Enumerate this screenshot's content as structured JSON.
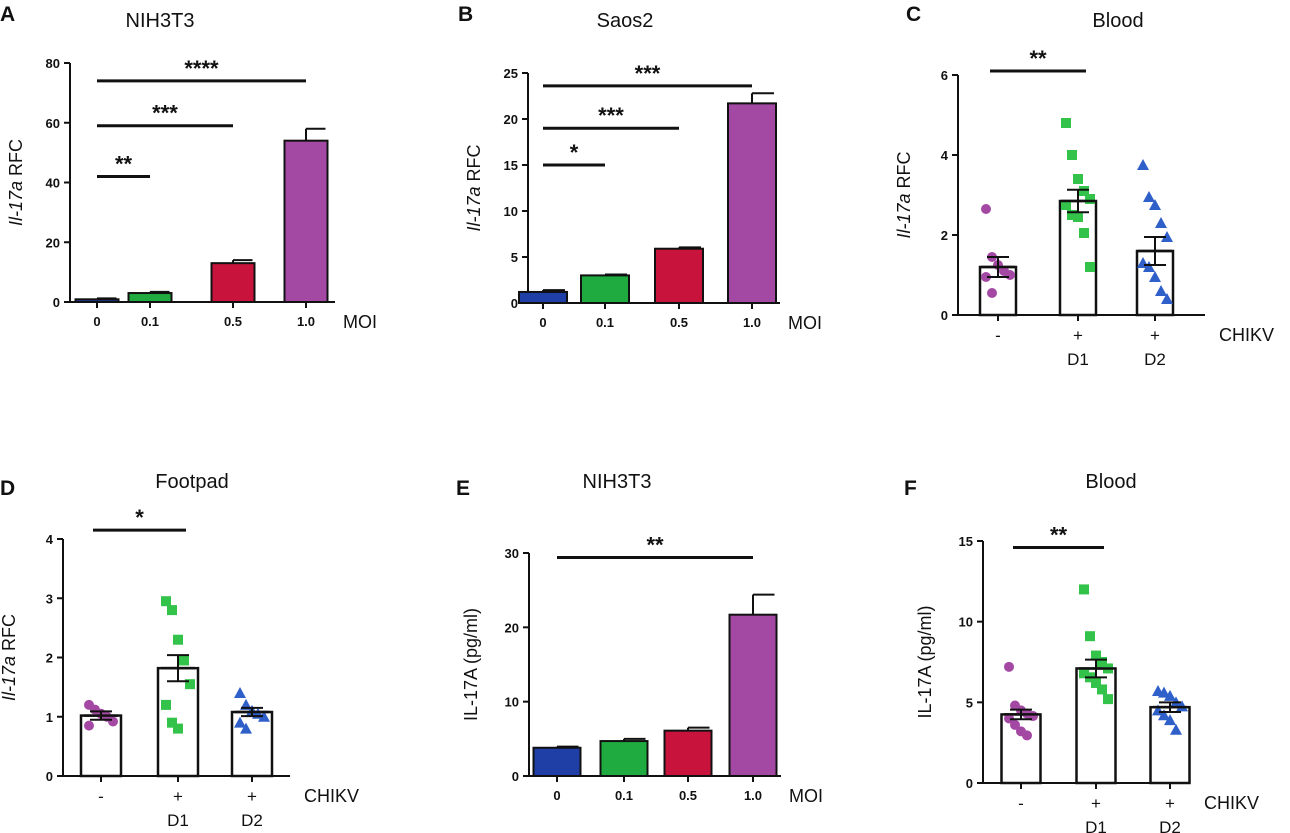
{
  "chart_data": [
    {
      "panel": "A",
      "type": "bar",
      "title": "NIH3T3",
      "ylabel_italic": "Il-17a",
      "ylabel_rest": " RFC",
      "categories": [
        "0",
        "0.1",
        "0.5",
        "1.0"
      ],
      "values": [
        0.9,
        3.0,
        13.0,
        54.0
      ],
      "errors": [
        0.3,
        0.4,
        1.0,
        4.0
      ],
      "colors": [
        "#1f3fa6",
        "#1fab3f",
        "#c8143c",
        "#a349a4"
      ],
      "ylim": [
        0,
        80
      ],
      "yticks": [
        "0",
        "20",
        "40",
        "60",
        "80"
      ],
      "xunit": "MOI",
      "significance": [
        {
          "from": 0,
          "to": 1,
          "level": 42,
          "label": "**"
        },
        {
          "from": 0,
          "to": 2,
          "level": 59,
          "label": "***"
        },
        {
          "from": 0,
          "to": 3,
          "level": 74,
          "label": "****"
        }
      ]
    },
    {
      "panel": "B",
      "type": "bar",
      "title": "Saos2",
      "ylabel_italic": "Il-17a",
      "ylabel_rest": " RFC",
      "categories": [
        "0",
        "0.1",
        "0.5",
        "1.0"
      ],
      "values": [
        1.2,
        3.0,
        5.9,
        21.7
      ],
      "errors": [
        0.2,
        0.1,
        0.15,
        1.1
      ],
      "colors": [
        "#1f3fa6",
        "#1fab3f",
        "#c8143c",
        "#a349a4"
      ],
      "ylim": [
        0,
        25
      ],
      "yticks": [
        "0",
        "5",
        "10",
        "15",
        "20",
        "25"
      ],
      "xunit": "MOI",
      "significance": [
        {
          "from": 0,
          "to": 1,
          "level": 15,
          "label": "*"
        },
        {
          "from": 0,
          "to": 2,
          "level": 19,
          "label": "***"
        },
        {
          "from": 0,
          "to": 3,
          "level": 23.6,
          "label": "***"
        }
      ]
    },
    {
      "panel": "C",
      "type": "dotbar",
      "title": "Blood",
      "ylabel_italic": "Il-17a",
      "ylabel_rest": " RFC",
      "categories": [
        "-",
        "+",
        "+"
      ],
      "sublabels": [
        "",
        "D1",
        "D2"
      ],
      "xunit": "CHIKV",
      "means": [
        1.2,
        2.85,
        1.6
      ],
      "sems": [
        0.25,
        0.28,
        0.35
      ],
      "points": [
        [
          2.65,
          1.45,
          1.25,
          1.1,
          1.0,
          0.95,
          0.55
        ],
        [
          4.8,
          4.0,
          3.4,
          3.1,
          2.9,
          2.75,
          2.5,
          2.45,
          2.05,
          1.2
        ],
        [
          3.75,
          2.95,
          2.75,
          2.3,
          1.95,
          1.3,
          1.2,
          0.95,
          0.6,
          0.4
        ]
      ],
      "colors": [
        "#a349a4",
        "#33c24a",
        "#2f5fc8"
      ],
      "markers": [
        "circle",
        "square",
        "triangle"
      ],
      "ylim": [
        0,
        6
      ],
      "yticks": [
        "0",
        "2",
        "4",
        "6"
      ],
      "significance": [
        {
          "from": 0,
          "to": 1,
          "level": 6.1,
          "label": "**"
        }
      ]
    },
    {
      "panel": "D",
      "type": "dotbar",
      "title": "Footpad",
      "ylabel_italic": "Il-17a",
      "ylabel_rest": " RFC",
      "categories": [
        "-",
        "+",
        "+"
      ],
      "sublabels": [
        "",
        "D1",
        "D2"
      ],
      "xunit": "CHIKV",
      "means": [
        1.02,
        1.82,
        1.08
      ],
      "sems": [
        0.07,
        0.22,
        0.07
      ],
      "points": [
        [
          1.2,
          1.12,
          1.05,
          1.0,
          0.92,
          0.85
        ],
        [
          2.95,
          2.8,
          2.3,
          1.95,
          1.55,
          1.2,
          0.9,
          0.8
        ],
        [
          1.4,
          1.2,
          1.1,
          1.05,
          1.0,
          0.9,
          0.8
        ]
      ],
      "colors": [
        "#a349a4",
        "#33c24a",
        "#2f5fc8"
      ],
      "markers": [
        "circle",
        "square",
        "triangle"
      ],
      "ylim": [
        0,
        4
      ],
      "yticks": [
        "0",
        "1",
        "2",
        "3",
        "4"
      ],
      "significance": [
        {
          "from": 0,
          "to": 1,
          "level": 4.15,
          "label": "*"
        }
      ]
    },
    {
      "panel": "E",
      "type": "bar",
      "title": "NIH3T3",
      "ylabel_italic": "",
      "ylabel_rest": "IL-17A (pg/ml)",
      "categories": [
        "0",
        "0.1",
        "0.5",
        "1.0"
      ],
      "values": [
        3.8,
        4.7,
        6.1,
        21.7
      ],
      "errors": [
        0.15,
        0.3,
        0.4,
        2.7
      ],
      "colors": [
        "#1f3fa6",
        "#1fab3f",
        "#c8143c",
        "#a349a4"
      ],
      "ylim": [
        0,
        30
      ],
      "yticks": [
        "0",
        "10",
        "20",
        "30"
      ],
      "xunit": "MOI",
      "significance": [
        {
          "from": 0,
          "to": 3,
          "level": 29.4,
          "label": "**"
        }
      ]
    },
    {
      "panel": "F",
      "type": "dotbar",
      "title": "Blood",
      "ylabel_italic": "",
      "ylabel_rest": "IL-17A (pg/ml)",
      "categories": [
        "-",
        "+",
        "+"
      ],
      "sublabels": [
        "",
        "D1",
        "D2"
      ],
      "xunit": "CHIKV",
      "means": [
        4.25,
        7.1,
        4.7
      ],
      "sems": [
        0.3,
        0.55,
        0.3
      ],
      "points": [
        [
          7.2,
          4.8,
          4.5,
          4.3,
          4.15,
          4.0,
          3.6,
          3.2,
          2.95
        ],
        [
          12.0,
          9.1,
          7.9,
          7.5,
          7.1,
          6.8,
          6.55,
          6.2,
          5.8,
          5.2
        ],
        [
          5.7,
          5.6,
          5.4,
          5.0,
          4.75,
          4.5,
          4.2,
          3.9,
          3.3
        ]
      ],
      "colors": [
        "#a349a4",
        "#33c24a",
        "#2f5fc8"
      ],
      "markers": [
        "circle",
        "square",
        "triangle"
      ],
      "ylim": [
        0,
        15
      ],
      "yticks": [
        "0",
        "5",
        "10",
        "15"
      ],
      "significance": [
        {
          "from": 0,
          "to": 1,
          "level": 14.6,
          "label": "**"
        }
      ]
    }
  ]
}
